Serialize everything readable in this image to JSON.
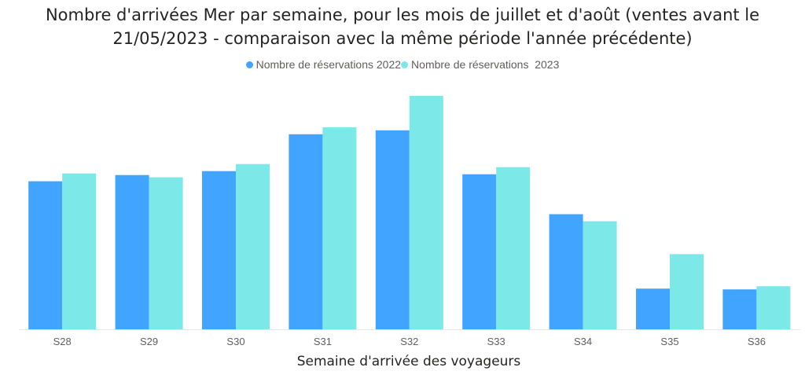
{
  "chart_data": {
    "type": "bar",
    "title": "Nombre d'arrivées Mer par semaine, pour les mois de juillet et d'août (ventes avant le 21/05/2023 - comparaison avec la même période l'année précédente)",
    "title_lines": [
      "Nombre d'arrivées Mer par semaine, pour les mois de juillet et d'août (ventes avant le",
      "21/05/2023 - comparaison avec la même période l'année précédente)"
    ],
    "xlabel": "Semaine d'arrivée des voyageurs",
    "ylabel": "",
    "categories": [
      "S28",
      "S29",
      "S30",
      "S31",
      "S32",
      "S33",
      "S34",
      "S35",
      "S36"
    ],
    "series": [
      {
        "name": "Nombre de réservations 2022",
        "color": "#41a4ff",
        "values": [
          189,
          197,
          202,
          249,
          254,
          198,
          147,
          52,
          51
        ]
      },
      {
        "name": "Nombre de réservations  2023",
        "color": "#7ce8e8",
        "values": [
          199,
          194,
          211,
          258,
          298,
          207,
          138,
          96,
          55
        ]
      }
    ],
    "ylim": [
      0,
      300
    ],
    "grid": false,
    "y_axis_visible": false,
    "legend_position": "top-center",
    "legend_marker": "circle"
  }
}
